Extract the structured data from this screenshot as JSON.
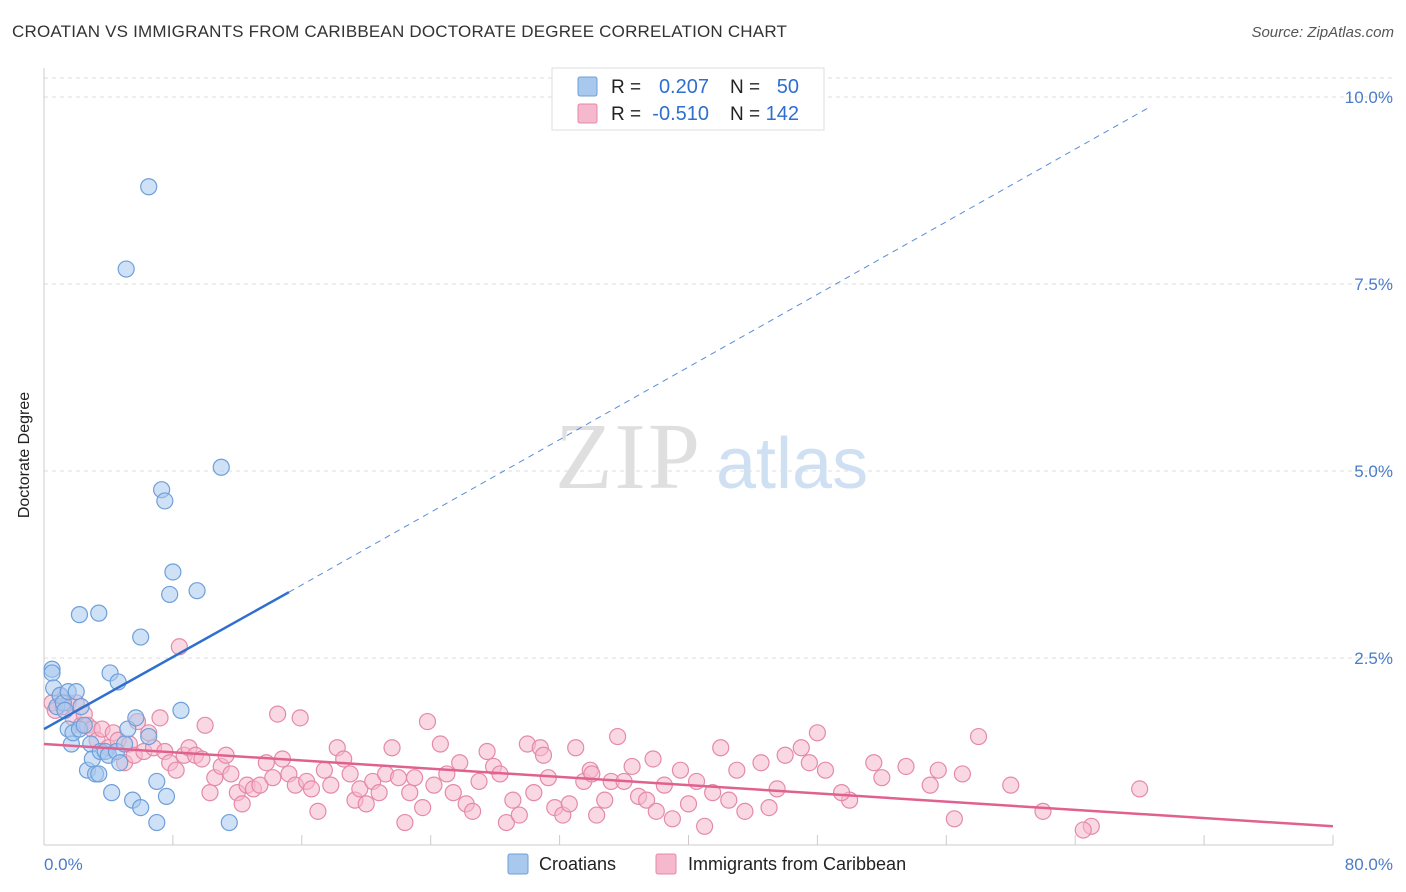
{
  "header": {
    "title": "CROATIAN VS IMMIGRANTS FROM CARIBBEAN DOCTORATE DEGREE CORRELATION CHART",
    "source": "Source: ZipAtlas.com"
  },
  "watermark": {
    "zip": "ZIP",
    "atlas": "atlas"
  },
  "stats_box": {
    "rows": [
      {
        "r_label": "R =",
        "r_value": "0.207",
        "n_label": "N =",
        "n_value": "50"
      },
      {
        "r_label": "R =",
        "r_value": "-0.510",
        "n_label": "N =",
        "n_value": "142"
      }
    ]
  },
  "legend": {
    "items": [
      "Croatians",
      "Immigrants from Caribbean"
    ]
  },
  "colors": {
    "blue_fill": "#a8c8ee",
    "blue_stroke": "#6f9fd8",
    "blue_line": "#2f6fcf",
    "pink_fill": "#f5b8cc",
    "pink_stroke": "#e48aa8",
    "pink_line": "#e0618f",
    "tick_label": "#4a7cc9",
    "grid": "#dddddd"
  },
  "chart_data": {
    "type": "scatter",
    "title": "CROATIAN VS IMMIGRANTS FROM CARIBBEAN DOCTORATE DEGREE CORRELATION CHART",
    "xlabel": "",
    "ylabel": "Doctorate Degree",
    "xlim": [
      0,
      80
    ],
    "ylim": [
      0,
      10.5
    ],
    "x_tick_labels": [
      "0.0%",
      "80.0%"
    ],
    "y_ticks": [
      2.5,
      5.0,
      7.5,
      10.0
    ],
    "y_tick_labels": [
      "2.5%",
      "5.0%",
      "7.5%",
      "10.0%"
    ],
    "series": [
      {
        "name": "Croatians",
        "color": "blue",
        "r": 0.207,
        "n": 50,
        "trend": {
          "x0": 0,
          "y0": 1.55,
          "x1": 15.2,
          "y1": 3.38,
          "dashed_to_x": 68.5,
          "dashed_to_y": 9.85
        },
        "points": [
          [
            0.5,
            2.35
          ],
          [
            0.5,
            2.3
          ],
          [
            0.6,
            2.1
          ],
          [
            0.8,
            1.85
          ],
          [
            1.0,
            2.0
          ],
          [
            1.2,
            1.9
          ],
          [
            1.3,
            1.8
          ],
          [
            1.5,
            2.05
          ],
          [
            1.5,
            1.55
          ],
          [
            1.7,
            1.35
          ],
          [
            1.8,
            1.5
          ],
          [
            2.0,
            2.05
          ],
          [
            2.2,
            1.55
          ],
          [
            2.3,
            1.85
          ],
          [
            2.5,
            1.6
          ],
          [
            2.7,
            1.0
          ],
          [
            2.9,
            1.35
          ],
          [
            3.0,
            1.15
          ],
          [
            3.2,
            0.95
          ],
          [
            3.4,
            0.95
          ],
          [
            3.5,
            1.25
          ],
          [
            3.8,
            1.25
          ],
          [
            4.0,
            1.2
          ],
          [
            4.2,
            0.7
          ],
          [
            4.5,
            1.25
          ],
          [
            4.7,
            1.1
          ],
          [
            5.0,
            1.35
          ],
          [
            5.2,
            1.55
          ],
          [
            5.5,
            0.6
          ],
          [
            5.7,
            1.7
          ],
          [
            6.0,
            0.5
          ],
          [
            6.5,
            1.45
          ],
          [
            7.0,
            0.3
          ],
          [
            7.0,
            0.85
          ],
          [
            7.3,
            4.75
          ],
          [
            7.5,
            4.6
          ],
          [
            7.6,
            0.65
          ],
          [
            7.8,
            3.35
          ],
          [
            8.0,
            3.65
          ],
          [
            8.5,
            1.8
          ],
          [
            9.5,
            3.4
          ],
          [
            11.0,
            5.05
          ],
          [
            11.5,
            0.3
          ],
          [
            6.5,
            8.8
          ],
          [
            5.1,
            7.7
          ],
          [
            3.4,
            3.1
          ],
          [
            2.2,
            3.08
          ],
          [
            6.0,
            2.78
          ],
          [
            4.1,
            2.3
          ],
          [
            4.6,
            2.18
          ]
        ]
      },
      {
        "name": "Immigrants from Caribbean",
        "color": "pink",
        "r": -0.51,
        "n": 142,
        "trend": {
          "x0": 0,
          "y0": 1.35,
          "x1": 80,
          "y1": 0.25
        },
        "points": [
          [
            0.5,
            1.9
          ],
          [
            0.7,
            1.8
          ],
          [
            1.0,
            2.0
          ],
          [
            1.2,
            1.85
          ],
          [
            1.5,
            1.9
          ],
          [
            1.8,
            1.7
          ],
          [
            2.0,
            1.9
          ],
          [
            2.3,
            1.6
          ],
          [
            2.5,
            1.75
          ],
          [
            2.7,
            1.6
          ],
          [
            3.0,
            1.55
          ],
          [
            3.3,
            1.4
          ],
          [
            3.6,
            1.55
          ],
          [
            4.0,
            1.3
          ],
          [
            4.3,
            1.5
          ],
          [
            4.6,
            1.4
          ],
          [
            5.0,
            1.1
          ],
          [
            5.3,
            1.35
          ],
          [
            5.6,
            1.2
          ],
          [
            5.8,
            1.65
          ],
          [
            6.2,
            1.25
          ],
          [
            6.5,
            1.5
          ],
          [
            6.8,
            1.3
          ],
          [
            7.2,
            1.7
          ],
          [
            7.5,
            1.25
          ],
          [
            7.8,
            1.1
          ],
          [
            8.2,
            1.0
          ],
          [
            8.4,
            2.65
          ],
          [
            8.7,
            1.2
          ],
          [
            9.0,
            1.3
          ],
          [
            9.4,
            1.2
          ],
          [
            9.8,
            1.15
          ],
          [
            10.0,
            1.6
          ],
          [
            10.3,
            0.7
          ],
          [
            10.6,
            0.9
          ],
          [
            11.0,
            1.05
          ],
          [
            11.3,
            1.2
          ],
          [
            11.6,
            0.95
          ],
          [
            12.0,
            0.7
          ],
          [
            12.3,
            0.55
          ],
          [
            12.6,
            0.8
          ],
          [
            13.0,
            0.75
          ],
          [
            13.4,
            0.8
          ],
          [
            13.8,
            1.1
          ],
          [
            14.2,
            0.9
          ],
          [
            14.5,
            1.75
          ],
          [
            14.8,
            1.15
          ],
          [
            15.2,
            0.95
          ],
          [
            15.6,
            0.8
          ],
          [
            15.9,
            1.7
          ],
          [
            16.3,
            0.85
          ],
          [
            16.6,
            0.75
          ],
          [
            17.0,
            0.45
          ],
          [
            17.4,
            1.0
          ],
          [
            17.8,
            0.8
          ],
          [
            18.2,
            1.3
          ],
          [
            18.6,
            1.15
          ],
          [
            19.0,
            0.95
          ],
          [
            19.3,
            0.6
          ],
          [
            19.6,
            0.75
          ],
          [
            20.0,
            0.55
          ],
          [
            20.4,
            0.85
          ],
          [
            20.8,
            0.7
          ],
          [
            21.2,
            0.95
          ],
          [
            21.6,
            1.3
          ],
          [
            22.0,
            0.9
          ],
          [
            22.4,
            0.3
          ],
          [
            22.7,
            0.7
          ],
          [
            23.0,
            0.9
          ],
          [
            23.5,
            0.5
          ],
          [
            23.8,
            1.65
          ],
          [
            24.2,
            0.8
          ],
          [
            24.6,
            1.35
          ],
          [
            25.0,
            0.95
          ],
          [
            25.4,
            0.7
          ],
          [
            25.8,
            1.1
          ],
          [
            26.2,
            0.55
          ],
          [
            26.6,
            0.45
          ],
          [
            27.0,
            0.85
          ],
          [
            27.5,
            1.25
          ],
          [
            27.9,
            1.05
          ],
          [
            28.3,
            0.95
          ],
          [
            28.7,
            0.3
          ],
          [
            29.1,
            0.6
          ],
          [
            29.5,
            0.4
          ],
          [
            30.0,
            1.35
          ],
          [
            30.4,
            0.7
          ],
          [
            30.8,
            1.3
          ],
          [
            31.3,
            0.9
          ],
          [
            31.7,
            0.5
          ],
          [
            32.2,
            0.4
          ],
          [
            32.6,
            0.55
          ],
          [
            33.0,
            1.3
          ],
          [
            33.5,
            0.85
          ],
          [
            33.9,
            1.0
          ],
          [
            34.3,
            0.4
          ],
          [
            34.8,
            0.6
          ],
          [
            35.2,
            0.85
          ],
          [
            35.6,
            1.45
          ],
          [
            36.0,
            0.85
          ],
          [
            36.5,
            1.05
          ],
          [
            36.9,
            0.65
          ],
          [
            37.4,
            0.6
          ],
          [
            38.0,
            0.45
          ],
          [
            38.5,
            0.8
          ],
          [
            39.0,
            0.35
          ],
          [
            39.5,
            1.0
          ],
          [
            40.0,
            0.55
          ],
          [
            40.5,
            0.85
          ],
          [
            41.0,
            0.25
          ],
          [
            42.0,
            1.3
          ],
          [
            42.5,
            0.6
          ],
          [
            43.0,
            1.0
          ],
          [
            43.5,
            0.45
          ],
          [
            44.5,
            1.1
          ],
          [
            45.5,
            0.75
          ],
          [
            46.0,
            1.2
          ],
          [
            47.0,
            1.3
          ],
          [
            47.5,
            1.1
          ],
          [
            48.0,
            1.5
          ],
          [
            48.5,
            1.0
          ],
          [
            50.0,
            0.6
          ],
          [
            51.5,
            1.1
          ],
          [
            53.5,
            1.05
          ],
          [
            55.0,
            0.8
          ],
          [
            55.5,
            1.0
          ],
          [
            56.5,
            0.35
          ],
          [
            58.0,
            1.45
          ],
          [
            62.0,
            0.45
          ],
          [
            65.0,
            0.25
          ],
          [
            68.0,
            0.75
          ],
          [
            64.5,
            0.2
          ],
          [
            60.0,
            0.8
          ],
          [
            57.0,
            0.95
          ],
          [
            52.0,
            0.9
          ],
          [
            49.5,
            0.7
          ],
          [
            45.0,
            0.5
          ],
          [
            41.5,
            0.7
          ],
          [
            37.8,
            1.15
          ],
          [
            34.0,
            0.95
          ],
          [
            31.0,
            1.2
          ]
        ]
      }
    ]
  }
}
